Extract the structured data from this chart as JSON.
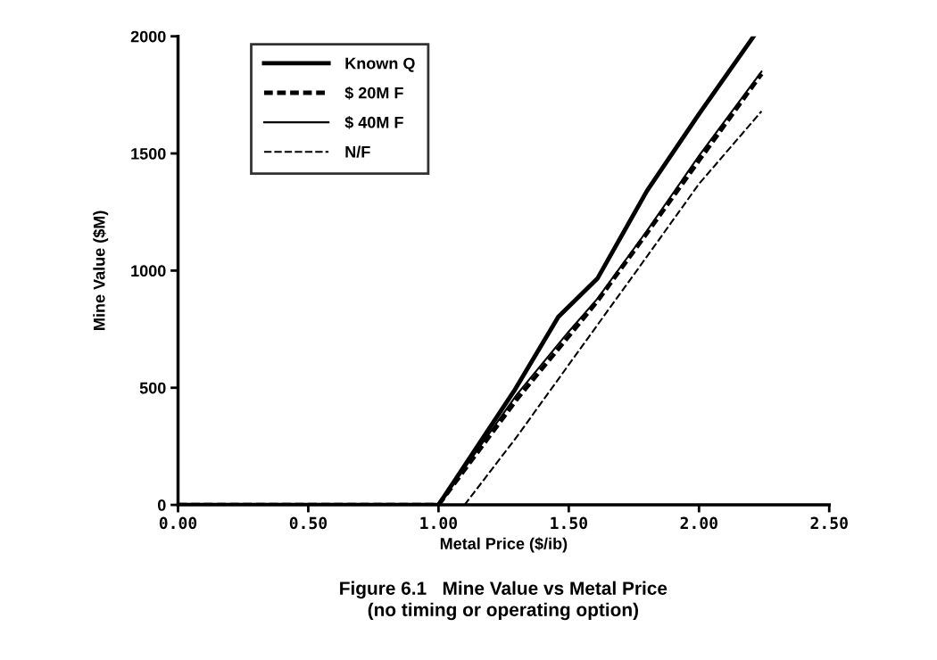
{
  "chart_data": {
    "type": "line",
    "title": "Figure 6.1   Mine Value vs Metal Price\n(no timing or operating option)",
    "xlabel": "Metal Price ($/ib)",
    "ylabel": "Mine Value ($M)",
    "series": [
      {
        "name": "Known Q",
        "color": "#000000",
        "line_style": "solid",
        "x": [
          0,
          1.0,
          1.29,
          1.46,
          1.61,
          1.8,
          2.0,
          2.21
        ],
        "values": [
          0,
          0,
          486,
          803,
          966,
          1340,
          1668,
          2000
        ]
      },
      {
        "name": "$ 20M F",
        "color": "#000000",
        "line_style": "dashed",
        "x": [
          0,
          1.0,
          1.3,
          1.5,
          1.61,
          1.8,
          2.0,
          2.24
        ],
        "values": [
          0,
          0,
          450,
          720,
          870,
          1160,
          1470,
          1840
        ]
      },
      {
        "name": "$ 40M F",
        "color": "#000000",
        "line_style": "solid",
        "x": [
          0,
          1.0,
          1.3,
          1.5,
          1.61,
          1.8,
          2.0,
          2.24
        ],
        "values": [
          0,
          0,
          470,
          740,
          880,
          1170,
          1490,
          1850
        ]
      },
      {
        "name": "N/F",
        "color": "#000000",
        "line_style": "dashed",
        "x": [
          0,
          1.0,
          1.1,
          1.3,
          1.54,
          1.8,
          2.0,
          2.24
        ],
        "values": [
          0,
          0,
          0,
          290,
          660,
          1060,
          1370,
          1680
        ]
      }
    ],
    "xlim": [
      0,
      2.5
    ],
    "xticks": [
      {
        "value": 0,
        "label": "0.00"
      },
      {
        "value": 0.5,
        "label": "0.50"
      },
      {
        "value": 1.0,
        "label": "1.00"
      },
      {
        "value": 1.5,
        "label": "1.50"
      },
      {
        "value": 2.0,
        "label": "2.00"
      },
      {
        "value": 2.5,
        "label": "2.50"
      }
    ],
    "ylim": [
      0,
      2000
    ],
    "yticks": [
      0,
      500,
      1000,
      1500,
      2000
    ],
    "grid": false,
    "legend": "top left",
    "marker": "none"
  }
}
